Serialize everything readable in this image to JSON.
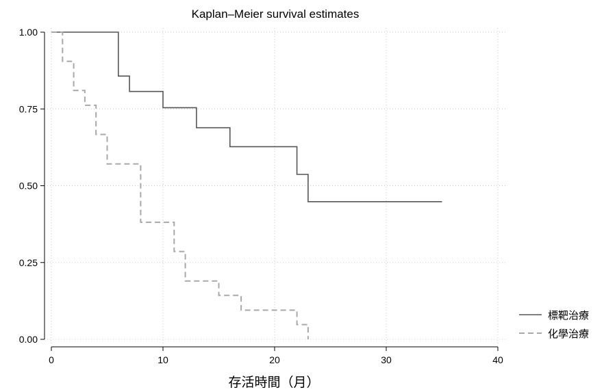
{
  "chart_data": {
    "type": "line",
    "step": true,
    "title": "Kaplan–Meier survival estimates",
    "xlabel": "存活時間（月）",
    "ylabel": "",
    "xlim": [
      0,
      40
    ],
    "ylim": [
      0,
      1
    ],
    "xticks": [
      "0",
      "10",
      "20",
      "30",
      "40"
    ],
    "yticks": [
      "0.00",
      "0.25",
      "0.50",
      "0.75",
      "1.00"
    ],
    "grid": true,
    "legend_position": "right",
    "series": [
      {
        "name": "標靶治療",
        "color": "#555555",
        "dash": "solid",
        "x": [
          0,
          6,
          7,
          10,
          13,
          16,
          22,
          23,
          35
        ],
        "y": [
          1.0,
          0.857,
          0.807,
          0.754,
          0.689,
          0.627,
          0.537,
          0.448,
          0.448
        ]
      },
      {
        "name": "化學治療",
        "color": "#a8a8a8",
        "dash": "dashed",
        "x": [
          0,
          1,
          2,
          3,
          4,
          5,
          8,
          11,
          12,
          15,
          17,
          22,
          23
        ],
        "y": [
          1.0,
          0.905,
          0.81,
          0.762,
          0.667,
          0.571,
          0.381,
          0.286,
          0.19,
          0.143,
          0.095,
          0.048,
          0.0
        ]
      }
    ]
  }
}
